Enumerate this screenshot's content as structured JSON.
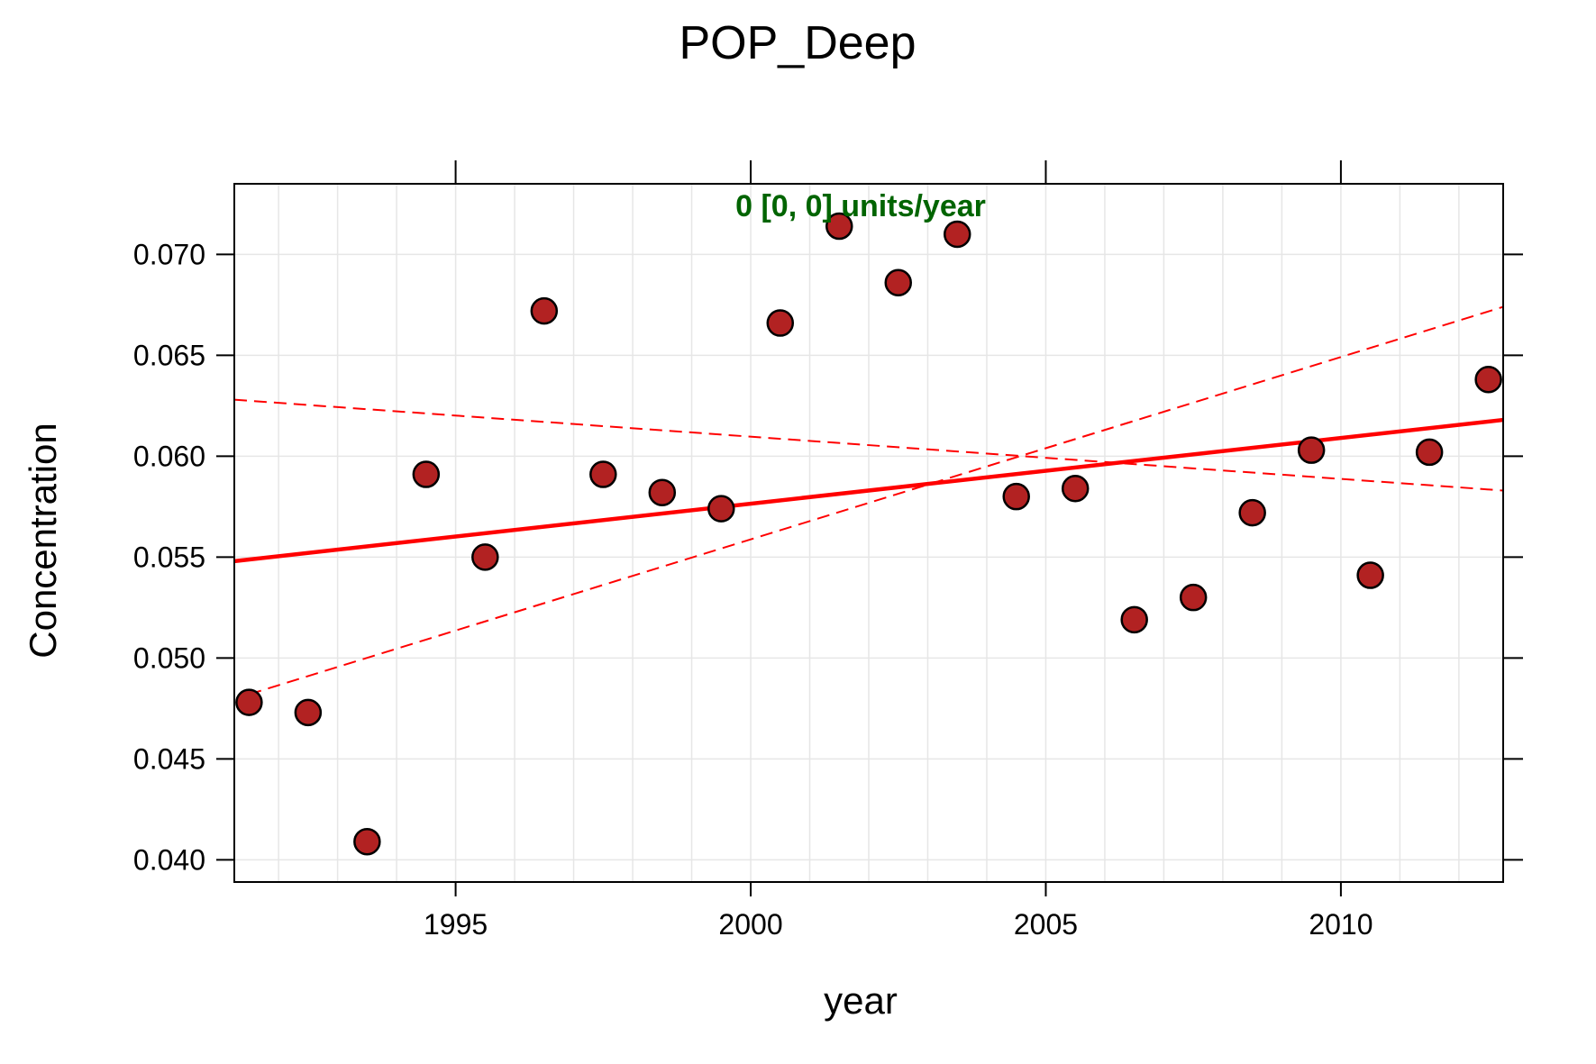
{
  "chart_data": {
    "type": "scatter",
    "title": "POP_Deep",
    "xlabel": "year",
    "ylabel": "Concentration",
    "xlim": [
      1991.25,
      2012.75
    ],
    "ylim": [
      0.0389,
      0.0735
    ],
    "x_ticks": [
      1995,
      2000,
      2005,
      2010
    ],
    "x_tick_labels": [
      "1995",
      "2000",
      "2005",
      "2010"
    ],
    "y_ticks": [
      0.04,
      0.045,
      0.05,
      0.055,
      0.06,
      0.065,
      0.07
    ],
    "y_tick_labels": [
      "0.040",
      "0.045",
      "0.050",
      "0.055",
      "0.060",
      "0.065",
      "0.070"
    ],
    "grid": true,
    "annotation": "0 [0, 0] units/year",
    "annotation_color": "#006400",
    "point_fill": "#b22222",
    "line_color": "#ff0000",
    "points": {
      "x": [
        1991.5,
        1992.5,
        1993.5,
        1994.5,
        1995.5,
        1996.5,
        1997.5,
        1998.5,
        1999.5,
        2000.5,
        2001.5,
        2002.5,
        2003.5,
        2004.5,
        2005.5,
        2006.5,
        2007.5,
        2008.5,
        2009.5,
        2010.5,
        2011.5,
        2012.5
      ],
      "y": [
        0.0478,
        0.0473,
        0.0409,
        0.0591,
        0.055,
        0.0672,
        0.0591,
        0.0582,
        0.0574,
        0.0666,
        0.0714,
        0.0686,
        0.071,
        0.058,
        0.0584,
        0.0519,
        0.053,
        0.0572,
        0.0603,
        0.0541,
        0.0602,
        0.0638
      ]
    },
    "trend_lines": [
      {
        "style": "solid",
        "x": [
          1991.25,
          2012.75
        ],
        "y": [
          0.0548,
          0.0618
        ]
      },
      {
        "style": "dashed",
        "x": [
          1991.25,
          2012.75
        ],
        "y": [
          0.0628,
          0.0583
        ]
      },
      {
        "style": "dashed",
        "x": [
          1991.5,
          2012.75
        ],
        "y": [
          0.0482,
          0.0674
        ]
      }
    ]
  }
}
